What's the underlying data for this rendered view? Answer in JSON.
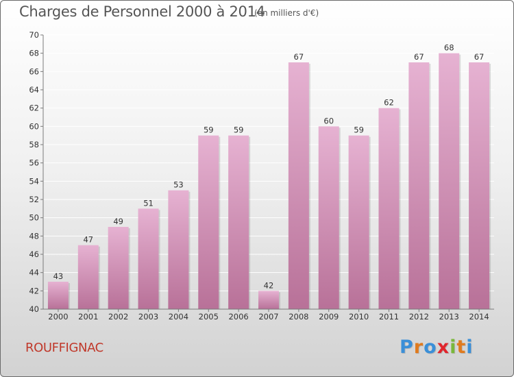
{
  "header": {
    "title": "Charges de Personnel 2000 à 2014",
    "subtitle": "(en milliers d'€)"
  },
  "footer": {
    "commune": "ROUFFIGNAC",
    "logo_text": "Proxiti",
    "logo_colors": [
      "#3a8fd8",
      "#e07b1e",
      "#3a8fd8",
      "#e0262d",
      "#7ab83b",
      "#e07b1e",
      "#3a8fd8"
    ]
  },
  "colors": {
    "bar_light": "#e6b2d2",
    "bar_dark": "#b87198",
    "axis": "#7a7a7a",
    "grid": "#ffffff"
  },
  "chart_data": {
    "type": "bar",
    "title": "Charges de Personnel 2000 à 2014",
    "subtitle": "(en milliers d'€)",
    "xlabel": "",
    "ylabel": "",
    "ylim": [
      40,
      70
    ],
    "ytick_step": 2,
    "grid": true,
    "categories": [
      "2000",
      "2001",
      "2002",
      "2003",
      "2004",
      "2005",
      "2006",
      "2007",
      "2008",
      "2009",
      "2010",
      "2011",
      "2012",
      "2013",
      "2014"
    ],
    "values": [
      43,
      47,
      49,
      51,
      53,
      59,
      59,
      42,
      67,
      60,
      59,
      62,
      67,
      68,
      67
    ]
  }
}
